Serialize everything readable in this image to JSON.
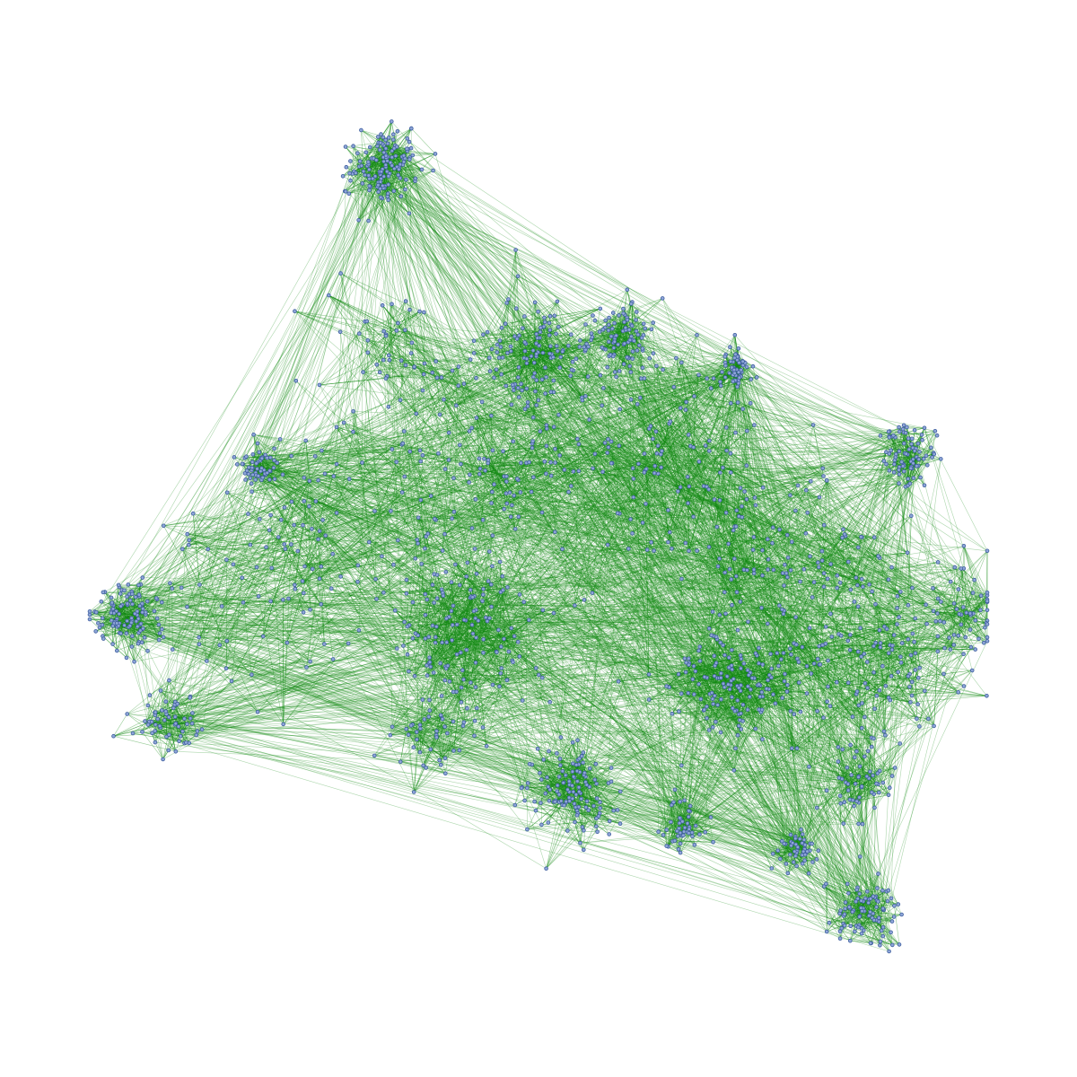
{
  "colors": {
    "background": "#ffffff",
    "edge": "#118a11",
    "node_fill": "#8fa6d8",
    "node_stroke": "#3f5f9f"
  },
  "graph": {
    "type": "network",
    "layout": "force-directed",
    "labels_visible": false,
    "clusters": [
      {
        "id": "north-tip",
        "size": 140
      },
      {
        "id": "north-hub",
        "size": 120
      },
      {
        "id": "east-upper",
        "size": 90
      },
      {
        "id": "east-ring",
        "size": 60
      },
      {
        "id": "east-tip",
        "size": 80
      },
      {
        "id": "west-tip",
        "size": 110
      },
      {
        "id": "south-west",
        "size": 60
      },
      {
        "id": "center",
        "size": 140
      },
      {
        "id": "south-east-hub",
        "size": 130
      },
      {
        "id": "south",
        "size": 120
      },
      {
        "id": "south-tip",
        "size": 90
      },
      {
        "id": "south-mid",
        "size": 50
      }
    ]
  }
}
